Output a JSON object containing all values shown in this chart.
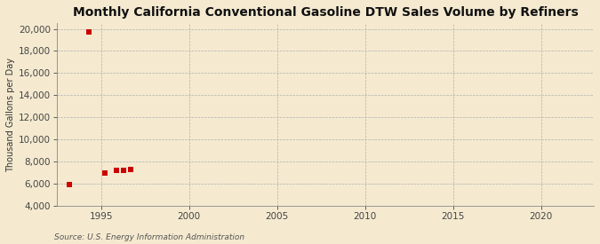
{
  "title": "Monthly California Conventional Gasoline DTW Sales Volume by Refiners",
  "ylabel": "Thousand Gallons per Day",
  "source_text": "Source: U.S. Energy Information Administration",
  "background_color": "#f5ead0",
  "plot_bg_color": "#f5ead0",
  "marker_color": "#cc0000",
  "marker_style": "s",
  "marker_size": 4,
  "xlim": [
    1992.5,
    2023
  ],
  "ylim": [
    4000,
    20500
  ],
  "yticks": [
    4000,
    6000,
    8000,
    10000,
    12000,
    14000,
    16000,
    18000,
    20000
  ],
  "xticks": [
    1995,
    2000,
    2005,
    2010,
    2015,
    2020
  ],
  "grid_color": "#b0b0b0",
  "grid_linestyle": "--",
  "title_fontsize": 10,
  "data_x": [
    1993.2,
    1994.3,
    1995.2,
    1995.9,
    1996.3,
    1996.7
  ],
  "data_y": [
    5900,
    19700,
    6950,
    7200,
    7200,
    7300
  ]
}
